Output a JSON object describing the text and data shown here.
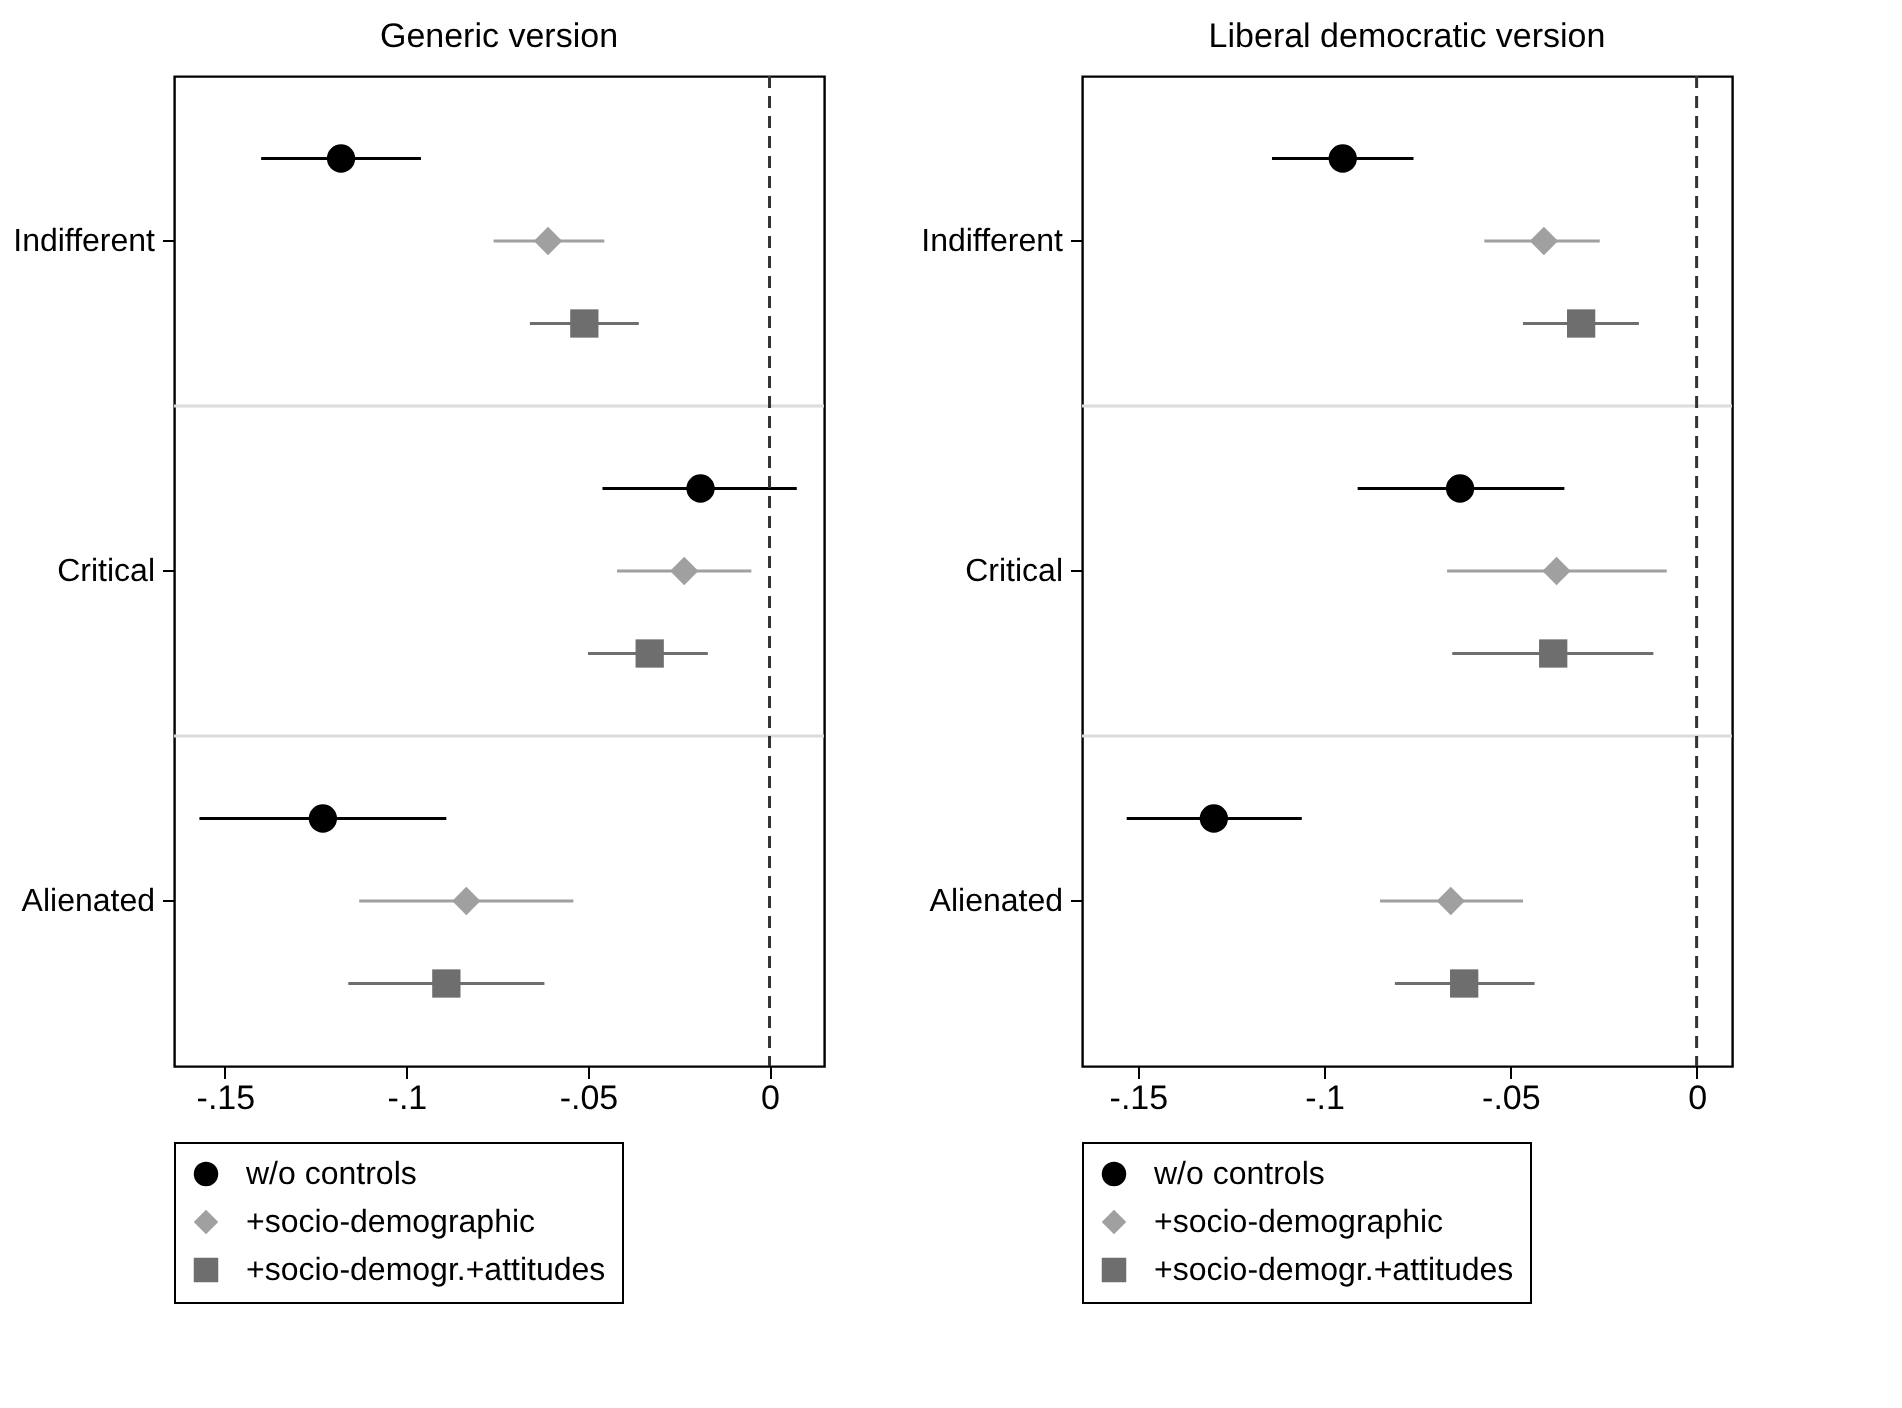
{
  "chart_data": [
    {
      "type": "scatter",
      "orientation": "horizontal",
      "title": "Generic version",
      "categories": [
        "Indifferent",
        "Critical",
        "Alienated"
      ],
      "xlim": [
        -0.164,
        0.015
      ],
      "xticks": [
        {
          "value": -0.15,
          "label": "-.15"
        },
        {
          "value": -0.1,
          "label": "-.1"
        },
        {
          "value": -0.05,
          "label": "-.05"
        },
        0
      ],
      "grid": "y",
      "legend": "bottom",
      "ref_lines": [
        {
          "axis": "x",
          "value": 0,
          "line_style": "dashed"
        }
      ],
      "series": [
        {
          "name": "w/o controls",
          "color": "#000000",
          "marker": "circle",
          "values": [
            -0.118,
            -0.019,
            -0.123
          ],
          "errors": [
            [
              -0.14,
              -0.096
            ],
            [
              -0.046,
              0.0075
            ],
            [
              -0.157,
              -0.089
            ]
          ]
        },
        {
          "name": "+socio-demographic",
          "color": "#a0a0a0",
          "marker": "diamond",
          "values": [
            -0.061,
            -0.0235,
            -0.0835
          ],
          "errors": [
            [
              -0.076,
              -0.0455
            ],
            [
              -0.042,
              -0.005
            ],
            [
              -0.113,
              -0.054
            ]
          ]
        },
        {
          "name": "+socio-demogr.+attitudes",
          "color": "#6e6e6e",
          "marker": "square",
          "values": [
            -0.051,
            -0.033,
            -0.089
          ],
          "errors": [
            [
              -0.066,
              -0.036
            ],
            [
              -0.05,
              -0.017
            ],
            [
              -0.116,
              -0.062
            ]
          ]
        }
      ]
    },
    {
      "type": "scatter",
      "orientation": "horizontal",
      "title": "Liberal democratic version",
      "categories": [
        "Indifferent",
        "Critical",
        "Alienated"
      ],
      "xlim": [
        -0.165,
        0.0095
      ],
      "xticks": [
        {
          "value": -0.15,
          "label": "-.15"
        },
        {
          "value": -0.1,
          "label": "-.1"
        },
        {
          "value": -0.05,
          "label": "-.05"
        },
        0
      ],
      "grid": "y",
      "legend": "bottom",
      "ref_lines": [
        {
          "axis": "x",
          "value": 0,
          "line_style": "dashed"
        }
      ],
      "series": [
        {
          "name": "w/o controls",
          "color": "#000000",
          "marker": "circle",
          "values": [
            -0.095,
            -0.0635,
            -0.1296
          ],
          "errors": [
            [
              -0.114,
              -0.076
            ],
            [
              -0.091,
              -0.0355
            ],
            [
              -0.153,
              -0.106
            ]
          ]
        },
        {
          "name": "+socio-demographic",
          "color": "#a0a0a0",
          "marker": "diamond",
          "values": [
            -0.041,
            -0.0376,
            -0.066
          ],
          "errors": [
            [
              -0.057,
              -0.026
            ],
            [
              -0.067,
              -0.008
            ],
            [
              -0.085,
              -0.0466
            ]
          ]
        },
        {
          "name": "+socio-demogr.+attitudes",
          "color": "#6e6e6e",
          "marker": "square",
          "values": [
            -0.031,
            -0.0385,
            -0.0624
          ],
          "errors": [
            [
              -0.0466,
              -0.0155
            ],
            [
              -0.0656,
              -0.0116
            ],
            [
              -0.081,
              -0.0435
            ]
          ]
        }
      ]
    }
  ]
}
